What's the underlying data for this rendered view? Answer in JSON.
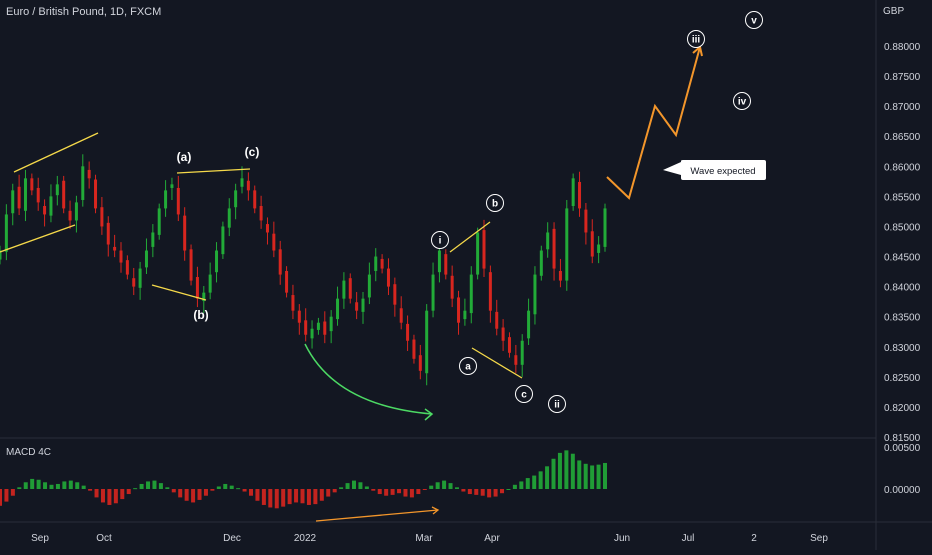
{
  "header": {
    "symbol": "Euro / British Pound, 1D, FXCM"
  },
  "price_axis": {
    "currency": "GBP",
    "ticks": [
      "0.88000",
      "0.87500",
      "0.87000",
      "0.86500",
      "0.86000",
      "0.85500",
      "0.85000",
      "0.84500",
      "0.84000",
      "0.83500",
      "0.83000",
      "0.82500",
      "0.82000",
      "0.81500"
    ]
  },
  "macd_axis": {
    "ticks": [
      "0.00500",
      "0.00000"
    ]
  },
  "time_axis": {
    "labels": [
      "Sep",
      "Oct",
      "Dec",
      "2022",
      "Mar",
      "Apr",
      "Jun",
      "Jul",
      "2",
      "Sep"
    ]
  },
  "indicator": {
    "label": "MACD 4C"
  },
  "annotations": {
    "wave_labels": [
      "(a)",
      "(b)",
      "(c)",
      "i",
      "ii",
      "iii",
      "iv",
      "v",
      "a",
      "b",
      "c"
    ],
    "callout": "Wave expected"
  },
  "colors": {
    "background": "#131722",
    "up": "#26a69a",
    "up_bar": "#22ab38",
    "down_bar": "#d8261f",
    "trendline": "#f5d94a",
    "projection": "#f3962b",
    "curve_arrow": "#4cd964",
    "grid_sep": "#2a2e39"
  },
  "chart_data": [
    {
      "type": "candlestick",
      "title": "Euro / British Pound, 1D, FXCM",
      "ylabel": "GBP",
      "ylim": [
        0.8135,
        0.8905
      ],
      "x_labels": [
        "Sep",
        "Oct",
        "Dec",
        "2022",
        "Mar",
        "Apr",
        "Jun",
        "Jul",
        "2",
        "Sep"
      ],
      "close_path_approx": [
        0.846,
        0.852,
        0.856,
        0.853,
        0.858,
        0.856,
        0.854,
        0.852,
        0.855,
        0.857,
        0.853,
        0.851,
        0.854,
        0.86,
        0.858,
        0.853,
        0.85,
        0.847,
        0.846,
        0.844,
        0.842,
        0.84,
        0.843,
        0.846,
        0.849,
        0.853,
        0.856,
        0.857,
        0.852,
        0.846,
        0.841,
        0.838,
        0.839,
        0.842,
        0.846,
        0.85,
        0.853,
        0.856,
        0.858,
        0.856,
        0.853,
        0.851,
        0.849,
        0.846,
        0.842,
        0.839,
        0.836,
        0.834,
        0.832,
        0.833,
        0.834,
        0.832,
        0.835,
        0.838,
        0.841,
        0.838,
        0.836,
        0.838,
        0.842,
        0.845,
        0.843,
        0.84,
        0.837,
        0.834,
        0.831,
        0.828,
        0.826,
        0.836,
        0.842,
        0.846,
        0.842,
        0.838,
        0.834,
        0.836,
        0.842,
        0.849,
        0.843,
        0.836,
        0.833,
        0.831,
        0.829,
        0.827,
        0.831,
        0.836,
        0.842,
        0.846,
        0.849,
        0.843,
        0.841,
        0.853,
        0.858,
        0.853,
        0.849,
        0.845,
        0.847,
        0.853
      ],
      "annotations": [
        "(a)",
        "(b)",
        "(c)",
        "i",
        "ii",
        "iii",
        "iv",
        "v",
        "a",
        "b",
        "c",
        "Wave expected"
      ]
    },
    {
      "type": "bar",
      "title": "MACD 4C",
      "ylim": [
        -0.0045,
        0.0055
      ],
      "axis_ticks": [
        "0.00500",
        "0.00000"
      ],
      "values_approx": [
        -0.002,
        -0.0015,
        -0.0008,
        0.0002,
        0.0008,
        0.0012,
        0.0011,
        0.0008,
        0.0005,
        0.0006,
        0.0009,
        0.001,
        0.0008,
        0.0004,
        -0.0002,
        -0.001,
        -0.0016,
        -0.0019,
        -0.0017,
        -0.0012,
        -0.0006,
        0.0001,
        0.0006,
        0.0009,
        0.001,
        0.0007,
        0.0002,
        -0.0004,
        -0.001,
        -0.0014,
        -0.0016,
        -0.0013,
        -0.0008,
        -0.0002,
        0.0003,
        0.0006,
        0.0004,
        0.0001,
        -0.0003,
        -0.0008,
        -0.0014,
        -0.0019,
        -0.0022,
        -0.0023,
        -0.0021,
        -0.0018,
        -0.0016,
        -0.0017,
        -0.0019,
        -0.0018,
        -0.0014,
        -0.0009,
        -0.0004,
        0.0002,
        0.0007,
        0.001,
        0.0008,
        0.0003,
        -0.0002,
        -0.0006,
        -0.0008,
        -0.0007,
        -0.0005,
        -0.0009,
        -0.001,
        -0.0006,
        -0.0001,
        0.0004,
        0.0008,
        0.001,
        0.0007,
        0.0002,
        -0.0003,
        -0.0006,
        -0.0007,
        -0.0008,
        -0.001,
        -0.0009,
        -0.0005,
        0.0,
        0.0005,
        0.0009,
        0.0013,
        0.0016,
        0.0021,
        0.0027,
        0.0036,
        0.0043,
        0.0046,
        0.0042,
        0.0034,
        0.003,
        0.0028,
        0.0029,
        0.0031
      ]
    }
  ]
}
